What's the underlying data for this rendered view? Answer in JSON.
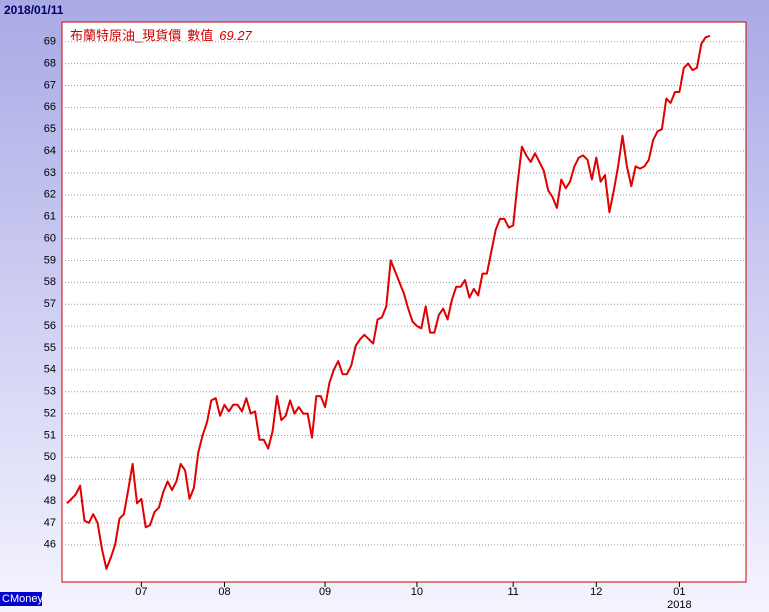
{
  "chart_data": {
    "type": "line",
    "date": "2018/01/11",
    "legend_value_label": "數值",
    "year_label": "2018",
    "brand": "CMoney",
    "categories": [
      null,
      null,
      null,
      null,
      null,
      null,
      null,
      null,
      null,
      null,
      null,
      null,
      null,
      null,
      null,
      null,
      null,
      "07",
      null,
      null,
      null,
      null,
      null,
      null,
      null,
      null,
      null,
      null,
      null,
      null,
      null,
      null,
      null,
      null,
      null,
      null,
      "08",
      null,
      null,
      null,
      null,
      null,
      null,
      null,
      null,
      null,
      null,
      null,
      null,
      null,
      null,
      null,
      null,
      null,
      null,
      null,
      null,
      null,
      null,
      "09",
      null,
      null,
      null,
      null,
      null,
      null,
      null,
      null,
      null,
      null,
      null,
      null,
      null,
      null,
      null,
      null,
      null,
      null,
      null,
      null,
      "10",
      null,
      null,
      null,
      null,
      null,
      null,
      null,
      null,
      null,
      null,
      null,
      null,
      null,
      null,
      null,
      null,
      null,
      null,
      null,
      null,
      null,
      "11",
      null,
      null,
      null,
      null,
      null,
      null,
      null,
      null,
      null,
      null,
      null,
      null,
      null,
      null,
      null,
      null,
      null,
      null,
      "12",
      null,
      null,
      null,
      null,
      null,
      null,
      null,
      null,
      null,
      null,
      null,
      null,
      null,
      null,
      null,
      null,
      null,
      null,
      "01",
      null,
      null,
      null,
      null,
      null,
      null,
      null
    ],
    "series": [
      {
        "name": "布蘭特原油_現貨價",
        "color": "#e00000",
        "values": [
          47.9,
          48.1,
          48.3,
          48.7,
          47.1,
          47.0,
          47.4,
          47.0,
          45.8,
          44.9,
          45.4,
          46.0,
          47.2,
          47.4,
          48.5,
          49.7,
          47.9,
          48.1,
          46.8,
          46.9,
          47.5,
          47.7,
          48.4,
          48.9,
          48.5,
          48.9,
          49.7,
          49.4,
          48.1,
          48.6,
          50.2,
          51.0,
          51.6,
          52.6,
          52.7,
          51.9,
          52.4,
          52.1,
          52.4,
          52.4,
          52.1,
          52.7,
          52.0,
          52.1,
          50.8,
          50.8,
          50.4,
          51.2,
          52.8,
          51.7,
          51.9,
          52.6,
          52.0,
          52.3,
          52.0,
          52.0,
          50.9,
          52.8,
          52.8,
          52.3,
          53.4,
          54.0,
          54.4,
          53.8,
          53.8,
          54.2,
          55.1,
          55.4,
          55.6,
          55.4,
          55.2,
          56.3,
          56.4,
          56.9,
          59.0,
          58.5,
          58.0,
          57.5,
          56.8,
          56.2,
          56.0,
          55.9,
          56.9,
          55.7,
          55.7,
          56.5,
          56.8,
          56.3,
          57.2,
          57.8,
          57.8,
          58.1,
          57.3,
          57.7,
          57.4,
          58.4,
          58.4,
          59.4,
          60.4,
          60.9,
          60.9,
          60.5,
          60.6,
          62.5,
          64.2,
          63.8,
          63.5,
          63.9,
          63.5,
          63.1,
          62.2,
          61.9,
          61.4,
          62.7,
          62.3,
          62.6,
          63.3,
          63.7,
          63.8,
          63.6,
          62.7,
          63.7,
          62.6,
          62.9,
          61.2,
          62.2,
          63.3,
          64.7,
          63.3,
          62.4,
          63.3,
          63.2,
          63.3,
          63.6,
          64.5,
          64.9,
          65.0,
          66.4,
          66.2,
          66.7,
          66.7,
          67.8,
          68.0,
          67.7,
          67.8,
          68.9,
          69.2,
          69.27
        ]
      }
    ],
    "ylim": [
      44.3,
      69.9
    ],
    "yticks": [
      46,
      47,
      48,
      49,
      50,
      51,
      52,
      53,
      54,
      55,
      56,
      57,
      58,
      59,
      60,
      61,
      62,
      63,
      64,
      65,
      66,
      67,
      68,
      69
    ],
    "grid": true
  }
}
